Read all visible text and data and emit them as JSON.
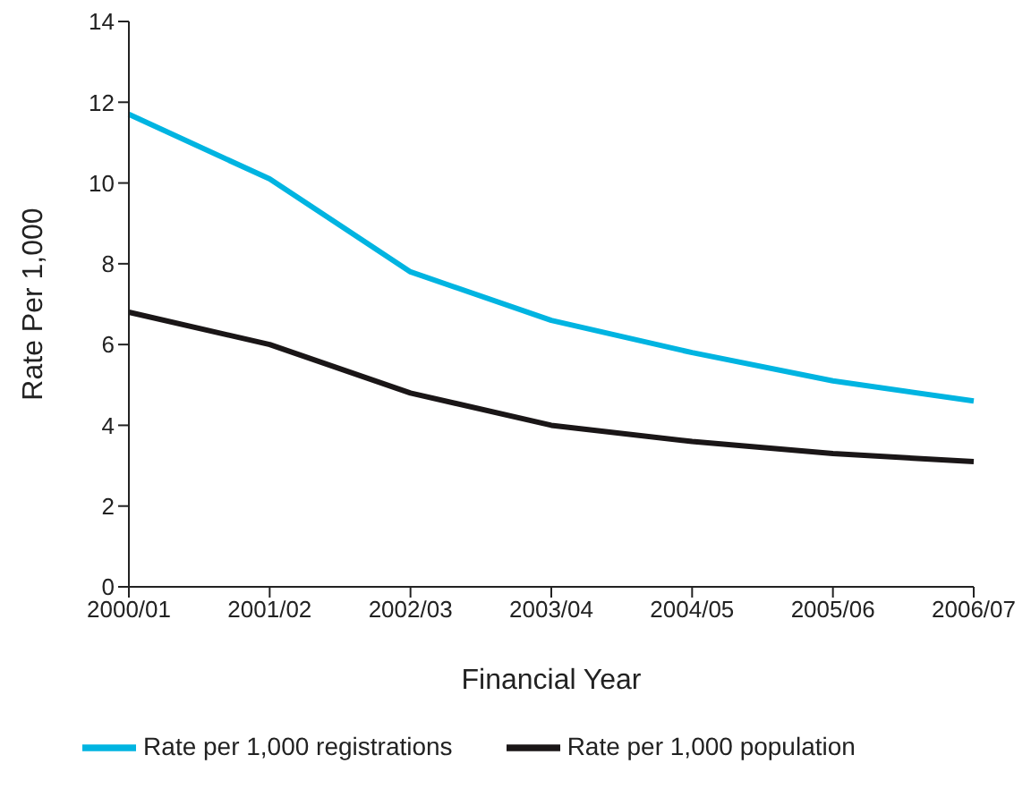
{
  "chart_data": {
    "type": "line",
    "xlabel": "Financial Year",
    "ylabel": "Rate Per 1,000",
    "categories": [
      "2000/01",
      "2001/02",
      "2002/03",
      "2003/04",
      "2004/05",
      "2005/06",
      "2006/07"
    ],
    "series": [
      {
        "name": "Rate per 1,000 registrations",
        "color": "#00b4e1",
        "values": [
          11.7,
          10.1,
          7.8,
          6.6,
          5.8,
          5.1,
          4.6
        ]
      },
      {
        "name": "Rate per 1,000 population",
        "color": "#1a1617",
        "values": [
          6.8,
          6.0,
          4.8,
          4.0,
          3.6,
          3.3,
          3.1
        ]
      }
    ],
    "ylim": [
      0,
      14
    ],
    "yticks": [
      0,
      2,
      4,
      6,
      8,
      10,
      12,
      14
    ],
    "grid": false,
    "legend": "bottom",
    "marker": "none",
    "line_style": "solid"
  }
}
